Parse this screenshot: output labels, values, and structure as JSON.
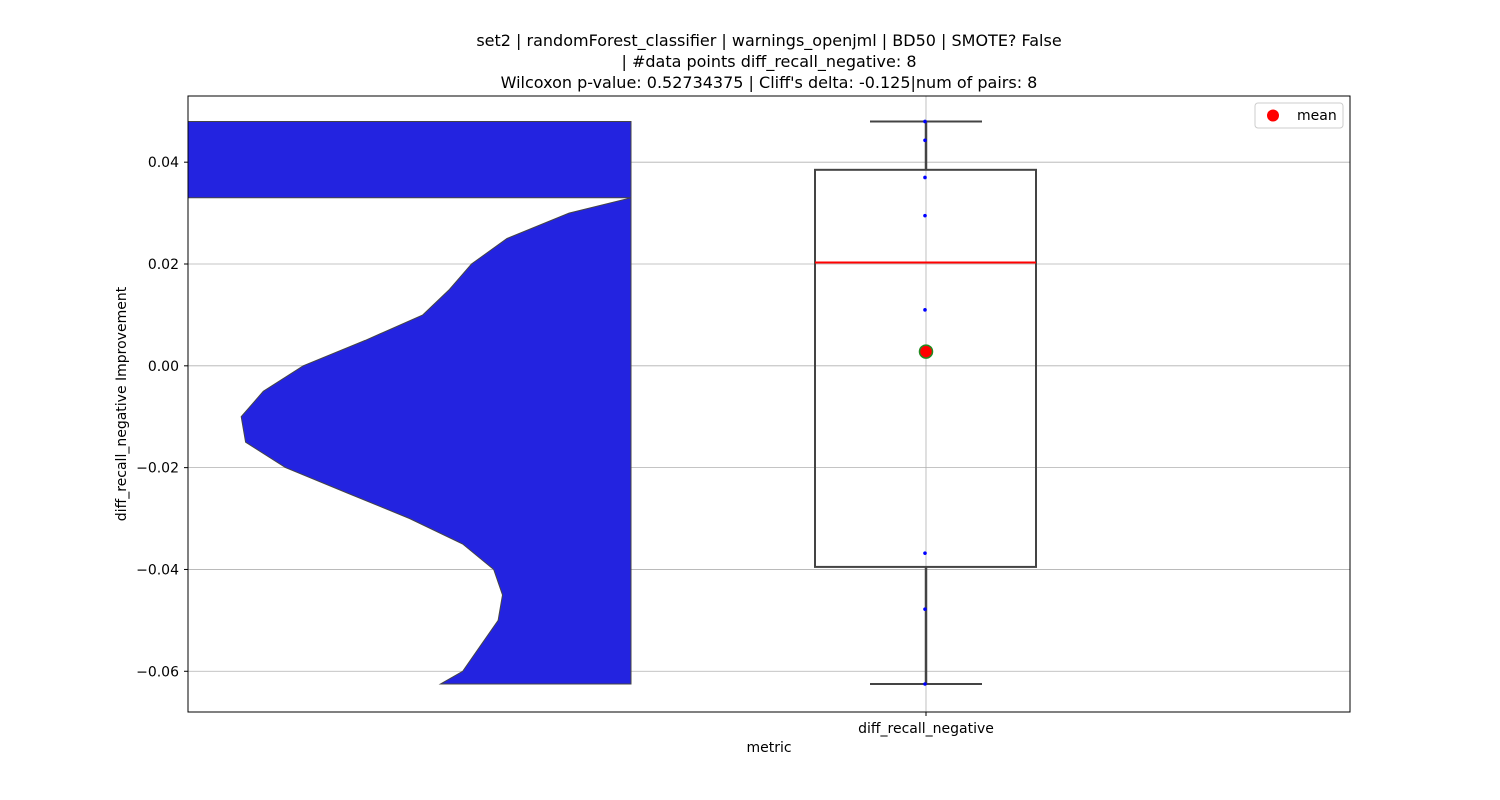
{
  "figure": {
    "title_lines": [
      "set2 | randomForest_classifier | warnings_openjml | BD50 | SMOTE? False",
      "| #data points diff_recall_negative: 8",
      "Wilcoxon p-value: 0.52734375 | Cliff's delta: -0.125|num of pairs: 8"
    ]
  },
  "chart_data": {
    "type": "violin+box",
    "title": "set2 | randomForest_classifier | warnings_openjml | BD50 | SMOTE? False | #data points diff_recall_negative: 8 Wilcoxon p-value: 0.52734375 | Cliff's delta: -0.125|num of pairs: 8",
    "xlabel": "metric",
    "ylabel": "diff_recall_negative Improvement",
    "categories": [
      "diff_recall_negative"
    ],
    "ylim": [
      -0.068,
      0.053
    ],
    "yticks": [
      -0.06,
      -0.04,
      -0.02,
      0.0,
      0.02,
      0.04
    ],
    "ytick_labels": [
      "−0.06",
      "−0.04",
      "−0.02",
      "0.00",
      "0.02",
      "0.04"
    ],
    "grid": true,
    "legend": {
      "position": "top-right",
      "entries": [
        {
          "label": "mean",
          "color": "#ff0000"
        }
      ]
    },
    "violin": {
      "color": "#2323e0",
      "edge_color": "#444444",
      "y_min": -0.0625,
      "y_max": 0.048,
      "profile": [
        [
          -0.0625,
          0.43
        ],
        [
          -0.06,
          0.38
        ],
        [
          -0.055,
          0.34
        ],
        [
          -0.05,
          0.3
        ],
        [
          -0.045,
          0.29
        ],
        [
          -0.04,
          0.31
        ],
        [
          -0.035,
          0.38
        ],
        [
          -0.03,
          0.5
        ],
        [
          -0.025,
          0.64
        ],
        [
          -0.02,
          0.78
        ],
        [
          -0.015,
          0.87
        ],
        [
          -0.01,
          0.88
        ],
        [
          -0.005,
          0.83
        ],
        [
          0.0,
          0.74
        ],
        [
          0.005,
          0.6
        ],
        [
          0.01,
          0.47
        ],
        [
          0.015,
          0.41
        ],
        [
          0.02,
          0.36
        ],
        [
          0.025,
          0.28
        ],
        [
          0.03,
          0.14
        ],
        [
          0.033,
          0.0
        ]
      ]
    },
    "box": {
      "q1": -0.0395,
      "median": 0.0203,
      "q3": 0.0385,
      "whisker_low": -0.0625,
      "whisker_high": 0.048,
      "box_color": "#444444",
      "median_color": "#ff0000"
    },
    "points": [
      0.048,
      0.0443,
      0.037,
      0.0295,
      0.011,
      -0.0368,
      -0.0478,
      -0.0625
    ],
    "points_color": "#0000ff",
    "mean": 0.0028,
    "mean_color": "#ff0000",
    "mean_edge_color": "#228b22"
  }
}
